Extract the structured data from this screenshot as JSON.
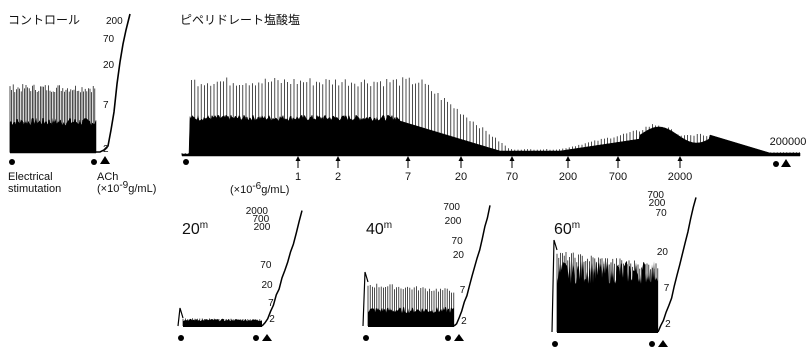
{
  "chart_data": {
    "type": "line",
    "headings": {
      "control": "コントロール",
      "drug": "ピペリドレート塩酸塩"
    },
    "stimulus_labels": {
      "electrical_line1": "Electrical",
      "electrical_line2": "stimutation",
      "ach_name": "ACh",
      "ach_unit_a": "(×10",
      "ach_unit_exp": "-9",
      "ach_unit_b": "g/mL)",
      "drug_unit_a": "(×10",
      "drug_unit_exp": "-6",
      "drug_unit_b": "g/mL)"
    },
    "control_ach_doses": [
      "200",
      "70",
      "20",
      "7",
      "2"
    ],
    "drug_doses": [
      "1",
      "2",
      "7",
      "20",
      "70",
      "200",
      "700",
      "2000",
      "200000"
    ],
    "recovery_panels": [
      {
        "time": "20",
        "unit": "m",
        "ach_doses": [
          "2000",
          "700",
          "200",
          "70",
          "20",
          "7",
          "2"
        ]
      },
      {
        "time": "40",
        "unit": "m",
        "ach_doses": [
          "700",
          "200",
          "70",
          "20",
          "7",
          "2"
        ]
      },
      {
        "time": "60",
        "unit": "m",
        "ach_doses": [
          "700",
          "200",
          "70",
          "20",
          "7",
          "2"
        ]
      }
    ]
  }
}
